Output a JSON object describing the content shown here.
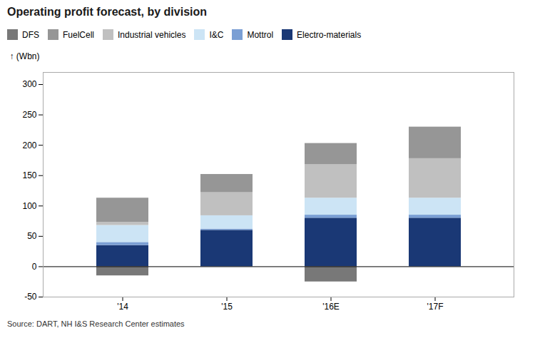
{
  "chart_data": {
    "type": "bar",
    "stacked": true,
    "title": "Operating profit forecast, by division",
    "ylabel": "(Wbn)",
    "annotations": [
      "Source: DART, NH I&S Research Center estimates"
    ],
    "categories": [
      "'14",
      "'15",
      "'16E",
      "'17F"
    ],
    "series": [
      {
        "name": "Electro-materials",
        "color": "#1a3875",
        "values": [
          35,
          60,
          80,
          80
        ]
      },
      {
        "name": "Mottrol",
        "color": "#7b9fd4",
        "values": [
          5,
          2,
          5,
          5
        ]
      },
      {
        "name": "I&C",
        "color": "#cce4f5",
        "values": [
          28,
          22,
          28,
          28
        ]
      },
      {
        "name": "Industrial vehicles",
        "color": "#c0c0c0",
        "values": [
          5,
          38,
          55,
          65
        ]
      },
      {
        "name": "FuelCell",
        "color": "#969696",
        "values": [
          40,
          30,
          35,
          52
        ]
      },
      {
        "name": "DFS",
        "color": "#787878",
        "values": [
          -15,
          0,
          -25,
          0
        ]
      }
    ],
    "ylim": [
      -50,
      320
    ],
    "yticks": [
      -50,
      0,
      50,
      100,
      150,
      200,
      250,
      300
    ],
    "grid": false,
    "legend": "upper left"
  }
}
